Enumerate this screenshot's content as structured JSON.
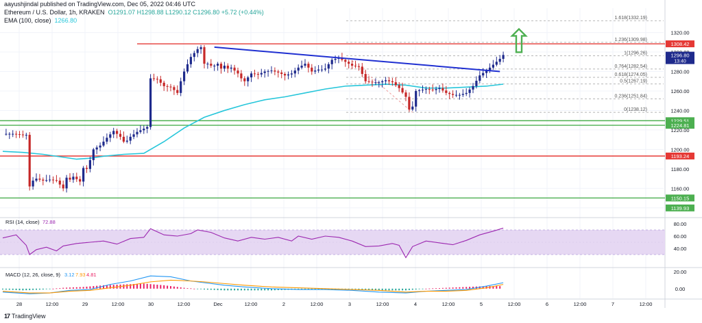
{
  "header": {
    "published": "aayushjindal published on TradingView.com, Dec 05, 2022 04:46 UTC",
    "symbol": "Ethereum / U.S. Dollar, 1h, KRAKEN",
    "ohlc": "O1291.07 H1298.88 L1290.12 C1296.80",
    "change": "+5.72 (+0.44%)",
    "ema": "EMA (100, close)",
    "ema_value": "1266.80"
  },
  "brand": {
    "logo": "17",
    "name": "TradingView"
  },
  "colors": {
    "up": "#1e2a8c",
    "down": "#c62828",
    "ema": "#26c6da",
    "trend": "#1f2fd1",
    "red_level": "#e53935",
    "green_level": "#4caf50",
    "fib": "#9e9e9e",
    "arrow": "#2e7d32",
    "rsi_line": "#9c27b0",
    "rsi_band": "#e6d8f3",
    "macd": "#2196f3",
    "signal": "#ff9800",
    "hist_pos": "#e91e63",
    "hist_neg": "#26a69a"
  },
  "chart_data": [
    {
      "type": "candlestick",
      "title": "Ethereum / U.S. Dollar, 1h, KRAKEN",
      "ylim": [
        1130,
        1345
      ],
      "y_ticks": [
        "1320.00",
        "1300.00",
        "1280.00",
        "1260.00",
        "1240.00",
        "1220.00",
        "1200.00",
        "1180.00",
        "1160.00",
        "1140.00"
      ],
      "x_ticks": [
        "28",
        "12:00",
        "29",
        "12:00",
        "30",
        "12:00",
        "Dec",
        "12:00",
        "2",
        "12:00",
        "3",
        "12:00",
        "4",
        "12:00",
        "5",
        "12:00",
        "6",
        "12:00",
        "7",
        "12:00"
      ],
      "price_path": [
        [
          0,
          1216
        ],
        [
          3,
          1216
        ],
        [
          6,
          1215
        ],
        [
          7,
          1215
        ],
        [
          8,
          1162
        ],
        [
          9,
          1168
        ],
        [
          10,
          1170
        ],
        [
          12,
          1168
        ],
        [
          14,
          1169
        ],
        [
          16,
          1168
        ],
        [
          18,
          1160
        ],
        [
          19,
          1171
        ],
        [
          20,
          1169
        ],
        [
          21,
          1172
        ],
        [
          23,
          1167
        ],
        [
          24,
          1181
        ],
        [
          25,
          1180
        ],
        [
          26,
          1189
        ],
        [
          27,
          1200
        ],
        [
          29,
          1204
        ],
        [
          31,
          1212
        ],
        [
          33,
          1219
        ],
        [
          35,
          1213
        ],
        [
          36,
          1208
        ],
        [
          37,
          1209
        ],
        [
          38,
          1213
        ],
        [
          40,
          1218
        ],
        [
          43,
          1223
        ],
        [
          44,
          1273
        ],
        [
          46,
          1272
        ],
        [
          48,
          1265
        ],
        [
          50,
          1264
        ],
        [
          52,
          1258
        ],
        [
          53,
          1270
        ],
        [
          54,
          1280
        ],
        [
          56,
          1295
        ],
        [
          58,
          1303
        ],
        [
          59,
          1305
        ],
        [
          60,
          1288
        ],
        [
          61,
          1288
        ],
        [
          62,
          1286
        ],
        [
          63,
          1286
        ],
        [
          64,
          1288
        ],
        [
          65,
          1283
        ],
        [
          66,
          1286
        ],
        [
          67,
          1283
        ],
        [
          68,
          1284
        ],
        [
          70,
          1278
        ],
        [
          71,
          1273
        ],
        [
          72,
          1270
        ],
        [
          74,
          1278
        ],
        [
          76,
          1277
        ],
        [
          78,
          1280
        ],
        [
          80,
          1281
        ],
        [
          82,
          1279
        ],
        [
          84,
          1276
        ],
        [
          86,
          1278
        ],
        [
          88,
          1284
        ],
        [
          90,
          1288
        ],
        [
          92,
          1280
        ],
        [
          94,
          1282
        ],
        [
          95,
          1282
        ],
        [
          96,
          1283
        ],
        [
          98,
          1292
        ],
        [
          100,
          1294
        ],
        [
          102,
          1290
        ],
        [
          104,
          1286
        ],
        [
          106,
          1285
        ],
        [
          108,
          1270
        ],
        [
          110,
          1269
        ],
        [
          112,
          1269
        ],
        [
          114,
          1271
        ],
        [
          116,
          1269
        ],
        [
          118,
          1263
        ],
        [
          120,
          1254
        ],
        [
          121,
          1241
        ],
        [
          122,
          1244
        ],
        [
          123,
          1260
        ],
        [
          126,
          1262
        ],
        [
          128,
          1261
        ],
        [
          130,
          1263
        ],
        [
          132,
          1258
        ],
        [
          134,
          1256
        ],
        [
          136,
          1256
        ],
        [
          138,
          1258
        ],
        [
          140,
          1265
        ],
        [
          142,
          1276
        ],
        [
          144,
          1281
        ],
        [
          146,
          1287
        ],
        [
          148,
          1293
        ],
        [
          149,
          1297
        ]
      ],
      "ema_line": [
        [
          0,
          1198
        ],
        [
          6,
          1197
        ],
        [
          12,
          1195
        ],
        [
          18,
          1192
        ],
        [
          22,
          1190
        ],
        [
          26,
          1191
        ],
        [
          30,
          1193
        ],
        [
          36,
          1195
        ],
        [
          42,
          1196
        ],
        [
          48,
          1208
        ],
        [
          54,
          1222
        ],
        [
          60,
          1233
        ],
        [
          66,
          1240
        ],
        [
          72,
          1246
        ],
        [
          78,
          1251
        ],
        [
          84,
          1254
        ],
        [
          90,
          1258
        ],
        [
          96,
          1262
        ],
        [
          102,
          1265
        ],
        [
          108,
          1266
        ],
        [
          114,
          1267
        ],
        [
          120,
          1266
        ],
        [
          126,
          1263
        ],
        [
          132,
          1263
        ],
        [
          138,
          1264
        ],
        [
          144,
          1265
        ],
        [
          149,
          1267
        ]
      ],
      "trendline": {
        "from": [
          63,
          1305
        ],
        "to": [
          148,
          1280
        ]
      },
      "fib_dashes": {
        "from": [
          104,
          1291
        ],
        "to": [
          122,
          1238
        ]
      },
      "fib_levels": [
        {
          "label": "1.618(1332.19)",
          "value": 1332.19
        },
        {
          "label": "1.236(1309.98)",
          "value": 1309.98
        },
        {
          "label": "1(1296.26)",
          "value": 1296.26
        },
        {
          "label": "0.764(1282.54)",
          "value": 1282.54
        },
        {
          "label": "0.618(1274.05)",
          "value": 1274.05
        },
        {
          "label": "0.5(1267.19)",
          "value": 1267.19
        },
        {
          "label": "0.236(1251.84)",
          "value": 1251.84
        },
        {
          "label": "0(1238.12)",
          "value": 1238.12
        }
      ],
      "red_levels": [
        1308.42,
        1193.24
      ],
      "green_levels": [
        1229.51,
        1224.81,
        1150.15
      ],
      "price_tags": [
        {
          "text": "1308.42",
          "value": 1308.42,
          "color": "#e53935"
        },
        {
          "text": "1296.80",
          "value": 1296.8,
          "color": "#1e2a8c",
          "sub": "13:40"
        },
        {
          "text": "1229.51",
          "value": 1229.51,
          "color": "#4caf50"
        },
        {
          "text": "1224.81",
          "value": 1224.81,
          "color": "#4caf50"
        },
        {
          "text": "1193.24",
          "value": 1193.24,
          "color": "#e53935"
        },
        {
          "text": "1150.15",
          "value": 1150.15,
          "color": "#4caf50"
        },
        {
          "text": "1139.93",
          "value": 1139.93,
          "color": "#4caf50"
        }
      ],
      "up_arrow": {
        "x": 150,
        "y_from": 1297,
        "y_to": 1318
      }
    },
    {
      "type": "line",
      "title": "RSI (14, close)",
      "value_label": "72.88",
      "ylim": [
        10,
        90
      ],
      "band": [
        30,
        70
      ],
      "y_ticks": [
        "80.00",
        "60.00",
        "40.00"
      ],
      "values": [
        [
          0,
          57
        ],
        [
          4,
          62
        ],
        [
          7,
          45
        ],
        [
          8,
          30
        ],
        [
          10,
          38
        ],
        [
          13,
          42
        ],
        [
          16,
          36
        ],
        [
          18,
          44
        ],
        [
          22,
          48
        ],
        [
          26,
          50
        ],
        [
          30,
          52
        ],
        [
          34,
          47
        ],
        [
          38,
          56
        ],
        [
          42,
          58
        ],
        [
          44,
          72
        ],
        [
          48,
          62
        ],
        [
          52,
          60
        ],
        [
          56,
          64
        ],
        [
          58,
          70
        ],
        [
          62,
          66
        ],
        [
          66,
          57
        ],
        [
          70,
          52
        ],
        [
          74,
          58
        ],
        [
          78,
          55
        ],
        [
          82,
          58
        ],
        [
          86,
          52
        ],
        [
          88,
          60
        ],
        [
          92,
          55
        ],
        [
          96,
          60
        ],
        [
          100,
          58
        ],
        [
          104,
          52
        ],
        [
          108,
          43
        ],
        [
          112,
          44
        ],
        [
          116,
          48
        ],
        [
          118,
          45
        ],
        [
          120,
          25
        ],
        [
          122,
          43
        ],
        [
          126,
          52
        ],
        [
          130,
          49
        ],
        [
          134,
          46
        ],
        [
          138,
          53
        ],
        [
          142,
          62
        ],
        [
          146,
          68
        ],
        [
          149,
          73
        ]
      ]
    },
    {
      "type": "bar",
      "title": "MACD (12, 26, close, 9)",
      "values_label": [
        "3.12",
        "7.93",
        "4.81"
      ],
      "ylim": [
        -9,
        24
      ],
      "y_ticks": [
        "20.00",
        "0.00"
      ],
      "macd": [
        [
          0,
          -4
        ],
        [
          8,
          -6
        ],
        [
          14,
          -5
        ],
        [
          20,
          -2
        ],
        [
          26,
          -1
        ],
        [
          32,
          5
        ],
        [
          38,
          9
        ],
        [
          44,
          15
        ],
        [
          50,
          14
        ],
        [
          56,
          9
        ],
        [
          60,
          7
        ],
        [
          66,
          4
        ],
        [
          72,
          2
        ],
        [
          80,
          0
        ],
        [
          88,
          -1
        ],
        [
          96,
          -1
        ],
        [
          104,
          -2
        ],
        [
          112,
          -4
        ],
        [
          120,
          -5
        ],
        [
          126,
          -3
        ],
        [
          132,
          -2
        ],
        [
          138,
          -1
        ],
        [
          144,
          3
        ],
        [
          149,
          7
        ]
      ],
      "signal": [
        [
          0,
          -3
        ],
        [
          8,
          -5
        ],
        [
          14,
          -5
        ],
        [
          20,
          -3
        ],
        [
          26,
          -2
        ],
        [
          32,
          1
        ],
        [
          38,
          4
        ],
        [
          44,
          8
        ],
        [
          50,
          10
        ],
        [
          56,
          9
        ],
        [
          60,
          8
        ],
        [
          66,
          6
        ],
        [
          72,
          4
        ],
        [
          80,
          2
        ],
        [
          88,
          1
        ],
        [
          96,
          0
        ],
        [
          104,
          -1
        ],
        [
          112,
          -2
        ],
        [
          120,
          -4
        ],
        [
          126,
          -3
        ],
        [
          132,
          -3
        ],
        [
          138,
          -2
        ],
        [
          144,
          1
        ],
        [
          149,
          5
        ]
      ],
      "histogram": [
        [
          0,
          -1
        ],
        [
          6,
          -2
        ],
        [
          12,
          -1
        ],
        [
          18,
          1
        ],
        [
          24,
          2
        ],
        [
          30,
          4
        ],
        [
          36,
          5
        ],
        [
          42,
          6
        ],
        [
          48,
          4
        ],
        [
          54,
          1
        ],
        [
          60,
          -1
        ],
        [
          66,
          -2
        ],
        [
          72,
          -2
        ],
        [
          80,
          -2
        ],
        [
          88,
          -1
        ],
        [
          96,
          -1
        ],
        [
          104,
          -1
        ],
        [
          112,
          -2
        ],
        [
          120,
          -2
        ],
        [
          126,
          0
        ],
        [
          132,
          1
        ],
        [
          138,
          2
        ],
        [
          144,
          3
        ],
        [
          149,
          3
        ]
      ]
    }
  ]
}
